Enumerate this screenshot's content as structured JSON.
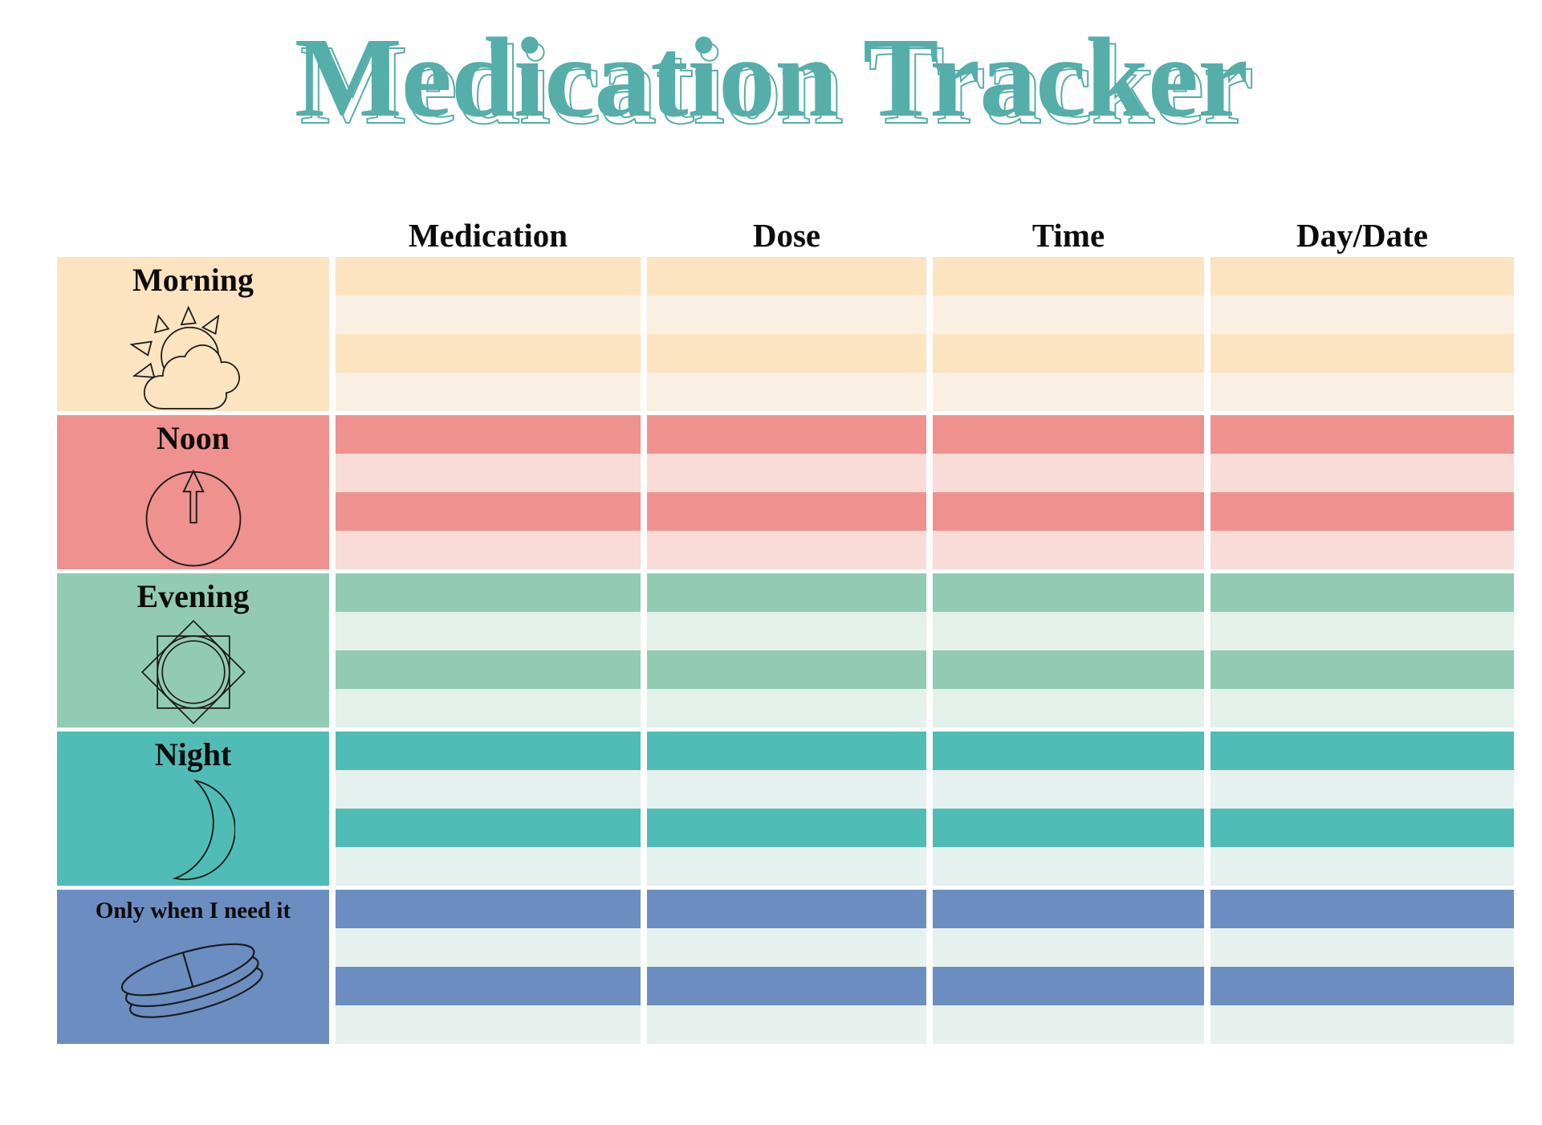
{
  "title": "Medication Tracker",
  "title_color": "#55AEA9",
  "columns": [
    "Medication",
    "Dose",
    "Time",
    "Day/Date"
  ],
  "header_text_color": "#0c0c0c",
  "sections": [
    {
      "label": "Morning",
      "icon": "sun-cloud-icon",
      "rows": 4,
      "colors": {
        "label": "#FCE4C1",
        "row_dark": "#FCE4C1",
        "row_light": "#F9F0E3"
      }
    },
    {
      "label": "Noon",
      "icon": "clock-noon-icon",
      "rows": 4,
      "colors": {
        "label": "#EF928F",
        "row_dark": "#EF928F",
        "row_light": "#F9DBD8"
      }
    },
    {
      "label": "Evening",
      "icon": "star-sun-icon",
      "rows": 4,
      "colors": {
        "label": "#92CBB3",
        "row_dark": "#92CBB3",
        "row_light": "#E4F0EA"
      }
    },
    {
      "label": "Night",
      "icon": "crescent-moon-icon",
      "rows": 4,
      "colors": {
        "label": "#50BCB6",
        "row_dark": "#50BCB6",
        "row_light": "#E5F1EF"
      }
    },
    {
      "label": "Only when I need it",
      "icon": "pills-icon",
      "rows": 4,
      "colors": {
        "label": "#6C8DC0",
        "row_dark": "#6C8DC0",
        "row_light": "#E6F1EE"
      }
    }
  ]
}
